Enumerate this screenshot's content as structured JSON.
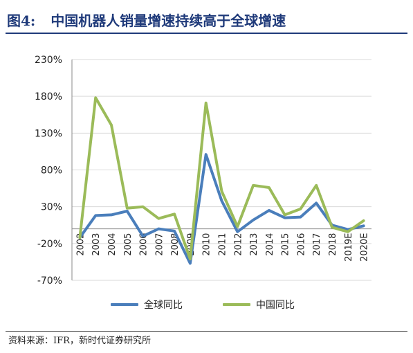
{
  "header": {
    "figure_label": "图4:",
    "title": "中国机器人销量增速持续高于全球增速"
  },
  "source": "资料来源：IFR，新时代证券研究所",
  "colors": {
    "global": "#4a7ebb",
    "china": "#9bbb59",
    "title": "#1f3a7a",
    "gridline": "#d9d9d9"
  },
  "chart_data": {
    "type": "line",
    "title": "",
    "xlabel": "",
    "ylabel": "",
    "categories": [
      "2002",
      "2003",
      "2004",
      "2005",
      "2006",
      "2007",
      "2008",
      "2009",
      "2010",
      "2011",
      "2012",
      "2013",
      "2014",
      "2015",
      "2016",
      "2017",
      "2018",
      "2019E",
      "2020E"
    ],
    "y_ticks": [
      "230%",
      "180%",
      "130%",
      "80%",
      "30%",
      "-20%",
      "-70%"
    ],
    "y_tick_values": [
      230,
      180,
      130,
      80,
      30,
      -20,
      -70
    ],
    "ylim": [
      -70,
      230
    ],
    "grid": true,
    "legend_position": "bottom",
    "series": [
      {
        "name": "全球同比",
        "color": "#4a7ebb",
        "values": [
          -12,
          18,
          19,
          24,
          -10,
          0,
          -3,
          -47,
          101,
          38,
          -4,
          12,
          25,
          15,
          16,
          35,
          5,
          -1,
          4
        ]
      },
      {
        "name": "中国同比",
        "color": "#9bbb59",
        "values": [
          -12,
          178,
          141,
          28,
          30,
          14,
          20,
          -41,
          171,
          51,
          3,
          59,
          56,
          19,
          27,
          59,
          2,
          -4,
          11
        ]
      }
    ]
  }
}
